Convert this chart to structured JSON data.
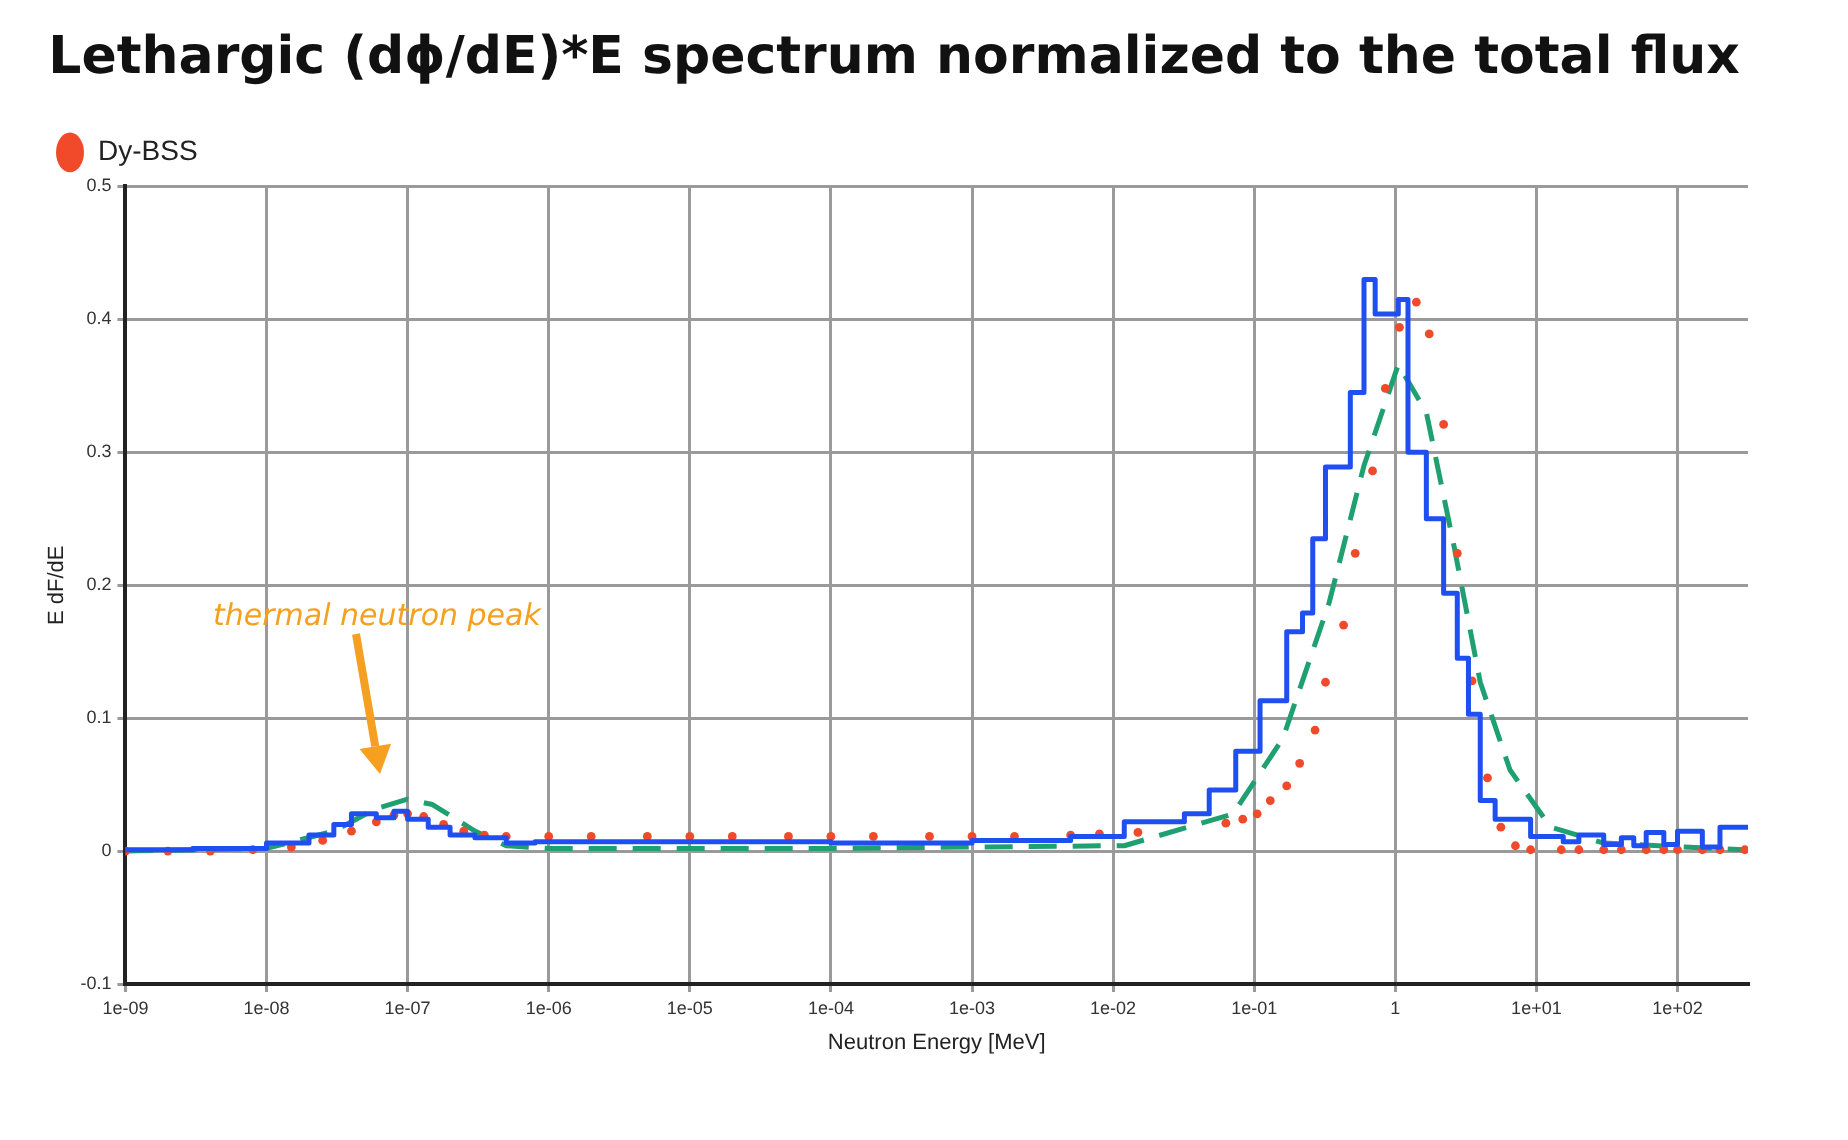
{
  "chart_data": {
    "type": "line",
    "title": "Lethargic (dϕ/dE)*E spectrum normalized to the total flux",
    "xlabel": "Neutron Energy [MeV]",
    "ylabel": "E dF/dE",
    "log": "x",
    "grid": true,
    "legend": "top left",
    "xlim": [
      1e-09,
      316
    ],
    "ylim": [
      -0.1,
      0.5
    ],
    "xticks": [
      {
        "value": 1e-09,
        "label": "1e-09"
      },
      {
        "value": 1e-08,
        "label": "1e-08"
      },
      {
        "value": 1e-07,
        "label": "1e-07"
      },
      {
        "value": 1e-06,
        "label": "1e-06"
      },
      {
        "value": 1e-05,
        "label": "1e-05"
      },
      {
        "value": 0.0001,
        "label": "1e-04"
      },
      {
        "value": 0.001,
        "label": "1e-03"
      },
      {
        "value": 0.01,
        "label": "1e-02"
      },
      {
        "value": 0.1,
        "label": "1e-01"
      },
      1,
      {
        "value": 10,
        "label": "1e+01"
      },
      {
        "value": 100,
        "label": "1e+02"
      }
    ],
    "yticks": [
      -0.1,
      0,
      0.1,
      0.2,
      0.3,
      0.4,
      0.5
    ],
    "annotations": [
      "thermal neutron peak"
    ],
    "series": [
      {
        "type": "step",
        "color": "#1f4ff0",
        "x": [
          1e-09,
          3e-09,
          1e-08,
          2e-08,
          3e-08,
          4e-08,
          6e-08,
          8e-08,
          1e-07,
          1.4e-07,
          2e-07,
          3e-07,
          5e-07,
          8e-07,
          0.0001,
          0.001,
          0.005,
          0.012,
          0.032,
          0.048,
          0.074,
          0.11,
          0.17,
          0.22,
          0.26,
          0.32,
          0.48,
          0.6,
          0.72,
          1.05,
          1.23,
          1.66,
          2.2,
          2.75,
          3.3,
          4.0,
          5.1,
          9.1,
          15.5,
          20,
          30,
          40,
          49,
          60,
          80,
          100,
          150,
          200,
          250,
          316
        ],
        "values": [
          0,
          0.001,
          0.002,
          0.006,
          0.012,
          0.02,
          0.028,
          0.025,
          0.03,
          0.024,
          0.018,
          0.012,
          0.01,
          0.006,
          0.007,
          0.006,
          0.008,
          0.011,
          0.022,
          0.028,
          0.046,
          0.075,
          0.113,
          0.165,
          0.179,
          0.235,
          0.289,
          0.345,
          0.43,
          0.404,
          0.415,
          0.3,
          0.25,
          0.194,
          0.145,
          0.103,
          0.038,
          0.024,
          0.011,
          0.007,
          0.012,
          0.005,
          0.01,
          0.004,
          0.014,
          0.005,
          0.015,
          0.003,
          0.018,
          0.018
        ]
      },
      {
        "type": "scatter",
        "name": "Dy-BSS",
        "color": "#f04a2a",
        "marker": "circle",
        "x": [
          1e-09,
          2e-09,
          4e-09,
          8e-09,
          1.5e-08,
          2.5e-08,
          4e-08,
          6e-08,
          8e-08,
          1e-07,
          1.3e-07,
          1.8e-07,
          2.5e-07,
          3.5e-07,
          5e-07,
          1e-06,
          2e-06,
          5e-06,
          1e-05,
          2e-05,
          5e-05,
          0.0001,
          0.0002,
          0.0005,
          0.001,
          0.002,
          0.005,
          0.008,
          0.015,
          0.063,
          0.083,
          0.105,
          0.13,
          0.17,
          0.21,
          0.27,
          0.32,
          0.43,
          0.52,
          0.69,
          0.85,
          1.07,
          1.41,
          1.74,
          2.2,
          2.75,
          3.5,
          4.5,
          5.6,
          7.1,
          9.1,
          15,
          20,
          30,
          40,
          60,
          80,
          100,
          150,
          200,
          300
        ],
        "values": [
          0,
          0,
          0,
          0.001,
          0.003,
          0.008,
          0.015,
          0.022,
          0.027,
          0.028,
          0.026,
          0.02,
          0.015,
          0.012,
          0.011,
          0.011,
          0.011,
          0.011,
          0.011,
          0.011,
          0.011,
          0.011,
          0.011,
          0.011,
          0.011,
          0.011,
          0.012,
          0.013,
          0.014,
          0.021,
          0.024,
          0.028,
          0.038,
          0.049,
          0.066,
          0.091,
          0.127,
          0.17,
          0.224,
          0.286,
          0.348,
          0.394,
          0.413,
          0.389,
          0.321,
          0.224,
          0.128,
          0.055,
          0.018,
          0.004,
          0.001,
          0.001,
          0.001,
          0.001,
          0.001,
          0.001,
          0.001,
          0.001,
          0.001,
          0.001,
          0.001
        ]
      },
      {
        "color": "#1fa070",
        "line_style": "dashed",
        "x": [
          1e-09,
          1e-08,
          3e-08,
          6e-08,
          1e-07,
          1.5e-07,
          3e-07,
          5e-07,
          1e-06,
          0.0001,
          0.01,
          0.012,
          0.071,
          0.16,
          0.34,
          0.6,
          1.05,
          1.66,
          2.6,
          4.0,
          6.5,
          12.6,
          30,
          295
        ],
        "values": [
          0,
          0.002,
          0.015,
          0.032,
          0.039,
          0.035,
          0.015,
          0.004,
          0.002,
          0.002,
          0.004,
          0.004,
          0.028,
          0.085,
          0.187,
          0.29,
          0.366,
          0.33,
          0.23,
          0.127,
          0.061,
          0.018,
          0.006,
          0.001
        ]
      }
    ]
  }
}
